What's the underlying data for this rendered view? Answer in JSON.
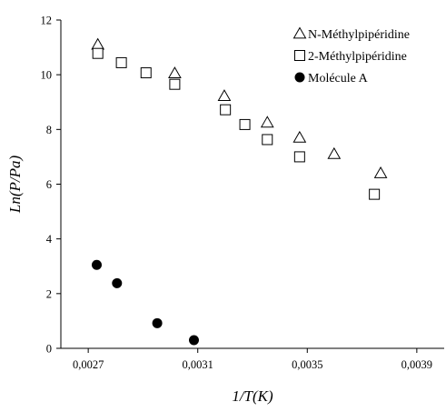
{
  "chart_data": {
    "type": "scatter",
    "title": "",
    "xlabel": "1/T(K)",
    "ylabel": "Ln(P/Pa)",
    "xlim": [
      0.0026,
      0.004
    ],
    "ylim": [
      0,
      12
    ],
    "x_ticks": [
      "0,0027",
      "0,0031",
      "0,0035",
      "0,0039"
    ],
    "x_tick_values": [
      0.0027,
      0.0031,
      0.0035,
      0.0039
    ],
    "y_ticks": [
      "0",
      "2",
      "4",
      "6",
      "8",
      "10",
      "12"
    ],
    "y_tick_values": [
      0,
      2,
      4,
      6,
      8,
      10,
      12
    ],
    "grid": false,
    "legend_position": "top-right",
    "series": [
      {
        "name": "N-Méthylpipéridine",
        "marker": "triangle-open",
        "color": "#000000",
        "points": [
          [
            0.002735,
            11.1
          ],
          [
            0.003016,
            10.05
          ],
          [
            0.003197,
            9.22
          ],
          [
            0.003354,
            8.25
          ],
          [
            0.003472,
            7.7
          ],
          [
            0.003598,
            7.1
          ],
          [
            0.003768,
            6.4
          ]
        ]
      },
      {
        "name": "2-Méthylpipéridine",
        "marker": "square-open",
        "color": "#000000",
        "points": [
          [
            0.002735,
            10.78
          ],
          [
            0.002821,
            10.44
          ],
          [
            0.002911,
            10.07
          ],
          [
            0.003016,
            9.65
          ],
          [
            0.003201,
            8.72
          ],
          [
            0.003272,
            8.18
          ],
          [
            0.003354,
            7.63
          ],
          [
            0.003472,
            7.0
          ],
          [
            0.003745,
            5.63
          ]
        ]
      },
      {
        "name": "Molécule A",
        "marker": "circle-filled",
        "color": "#000000",
        "points": [
          [
            0.002731,
            3.05
          ],
          [
            0.002805,
            2.38
          ],
          [
            0.002952,
            0.92
          ],
          [
            0.003086,
            0.3
          ]
        ]
      }
    ]
  }
}
